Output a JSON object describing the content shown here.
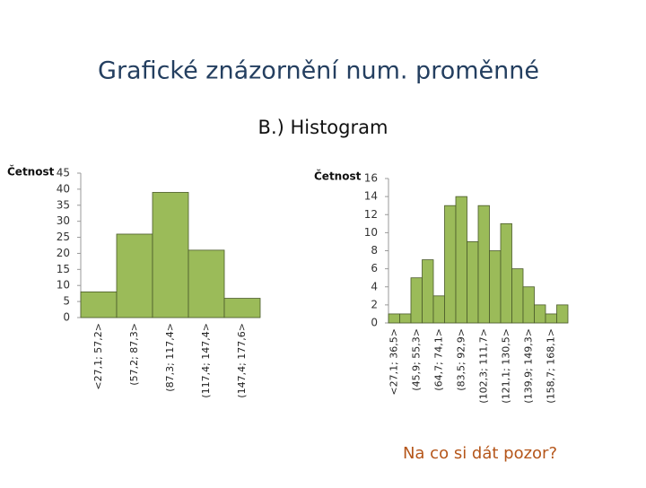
{
  "title": "Grafické znázornění num. proměnné",
  "subtitle": "B.) Histogram",
  "chart_data": [
    {
      "type": "bar",
      "y_label": "Četnost",
      "categories": [
        "<27,1; 57,2>",
        "(57,2; 87,3>",
        "(87,3; 117,4>",
        "(117,4; 147,4>",
        "(147,4; 177,6>"
      ],
      "values": [
        8,
        26,
        39,
        21,
        6
      ],
      "color": "#9bbb59",
      "ylim": [
        0,
        45
      ],
      "yticks": [
        0,
        5,
        10,
        15,
        20,
        25,
        30,
        35,
        40,
        45
      ]
    },
    {
      "type": "bar",
      "y_label": "Četnost",
      "categories": [
        "<27,1; 36,5>",
        null,
        "(45,9; 55,3>",
        null,
        "(64,7; 74,1>",
        null,
        "(83,5; 92,9>",
        null,
        "(102,3; 111,7>",
        null,
        "(121,1; 130,5>",
        null,
        "(139,9; 149,3>",
        null,
        "(158,7; 168,1>",
        null
      ],
      "values": [
        1,
        1,
        5,
        7,
        3,
        13,
        14,
        9,
        13,
        8,
        11,
        6,
        4,
        2,
        1,
        2
      ],
      "color": "#9bbb59",
      "ylim": [
        0,
        16
      ],
      "yticks": [
        0,
        2,
        4,
        6,
        8,
        10,
        12,
        14,
        16
      ]
    }
  ],
  "footer": "Na co si dát pozor?"
}
